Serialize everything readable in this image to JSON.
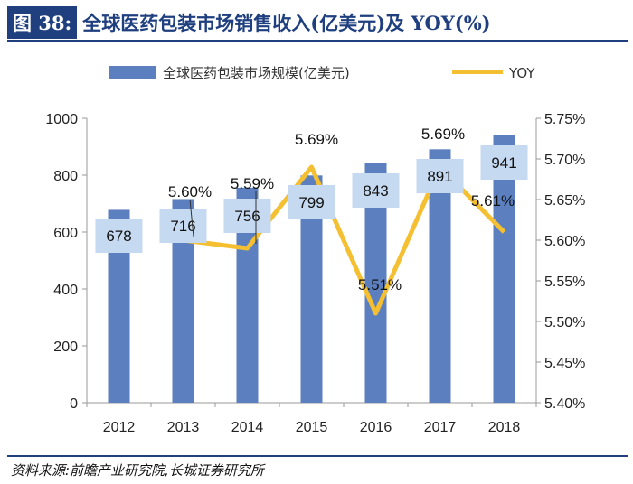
{
  "header": {
    "figure_label": "图 38:",
    "title": "全球医药包装市场销售收入(亿美元)及 YOY(%)"
  },
  "chart_data": {
    "type": "bar",
    "categories": [
      "2012",
      "2013",
      "2014",
      "2015",
      "2016",
      "2017",
      "2018"
    ],
    "series": [
      {
        "name": "全球医药包装市场规模(亿美元)",
        "type": "bar",
        "axis": "left",
        "values": [
          678,
          716,
          756,
          799,
          843,
          891,
          941
        ]
      },
      {
        "name": "YOY",
        "type": "line",
        "axis": "right",
        "values": [
          null,
          5.6,
          5.59,
          5.69,
          5.51,
          5.69,
          5.61
        ]
      }
    ],
    "left_axis": {
      "ylim": [
        0,
        1000
      ],
      "ticks": [
        "0",
        "200",
        "400",
        "600",
        "800",
        "1000"
      ]
    },
    "right_axis": {
      "ylim": [
        5.4,
        5.75
      ],
      "ticks": [
        "5.40%",
        "5.45%",
        "5.50%",
        "5.55%",
        "5.60%",
        "5.65%",
        "5.70%",
        "5.75%"
      ]
    },
    "bar_labels": [
      "678",
      "716",
      "756",
      "799",
      "843",
      "891",
      "941"
    ],
    "yoy_labels": [
      "",
      "5.60%",
      "5.59%",
      "5.69%",
      "5.51%",
      "5.69%",
      "5.61%"
    ],
    "legend_position": "top",
    "grid": false,
    "colors": {
      "bar": "#5b7fbf",
      "line": "#f5bf32",
      "label_box": "#c5d9f0"
    }
  },
  "footer": {
    "source": "资料来源:前瞻产业研究院,长城证券研究所"
  }
}
